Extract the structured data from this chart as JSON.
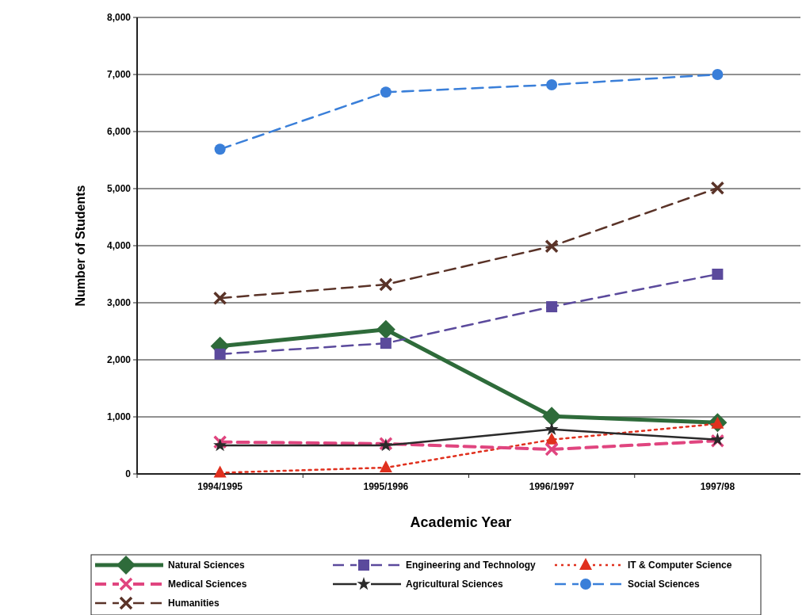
{
  "chart_data": {
    "type": "line",
    "xlabel": "Academic Year",
    "ylabel": "Number of Students",
    "categories": [
      "1994/1995",
      "1995/1996",
      "1996/1997",
      "1997/98"
    ],
    "ylim": [
      0,
      8000
    ],
    "yticks": [
      {
        "value": 0,
        "label": "0"
      },
      {
        "value": 1000,
        "label": "1,000"
      },
      {
        "value": 2000,
        "label": "2,000"
      },
      {
        "value": 3000,
        "label": "3,000"
      },
      {
        "value": 4000,
        "label": "4,000"
      },
      {
        "value": 5000,
        "label": "5,000"
      },
      {
        "value": 6000,
        "label": "6,000"
      },
      {
        "value": 7000,
        "label": "7,000"
      },
      {
        "value": 8000,
        "label": "8,000"
      }
    ],
    "grid": "y",
    "legend": "bottom",
    "series": [
      {
        "name": "Natural Sciences",
        "color": "#2e6b3a",
        "values": [
          2240,
          2530,
          1010,
          900
        ],
        "marker": "diamond",
        "line_style": "solid"
      },
      {
        "name": "Engineering and Technology",
        "color": "#5b4a9c",
        "values": [
          2100,
          2290,
          2930,
          3500
        ],
        "marker": "square",
        "line_style": "dashed"
      },
      {
        "name": "IT & Computer Science",
        "color": "#e0301e",
        "values": [
          20,
          110,
          600,
          880
        ],
        "marker": "triangle",
        "line_style": "dotted"
      },
      {
        "name": "Medical Sciences",
        "color": "#e0457f",
        "values": [
          560,
          530,
          430,
          580
        ],
        "marker": "cross",
        "line_style": "dashed"
      },
      {
        "name": "Agricultural Sciences",
        "color": "#2a2a2a",
        "values": [
          500,
          500,
          780,
          600
        ],
        "marker": "star",
        "line_style": "solid"
      },
      {
        "name": "Social Sciences",
        "color": "#3a7fd9",
        "values": [
          5690,
          6690,
          6820,
          7000
        ],
        "marker": "circle",
        "line_style": "dashed"
      },
      {
        "name": "Humanities",
        "color": "#5a3328",
        "values": [
          3080,
          3320,
          3990,
          5010
        ],
        "marker": "cross",
        "line_style": "dashed"
      }
    ]
  }
}
